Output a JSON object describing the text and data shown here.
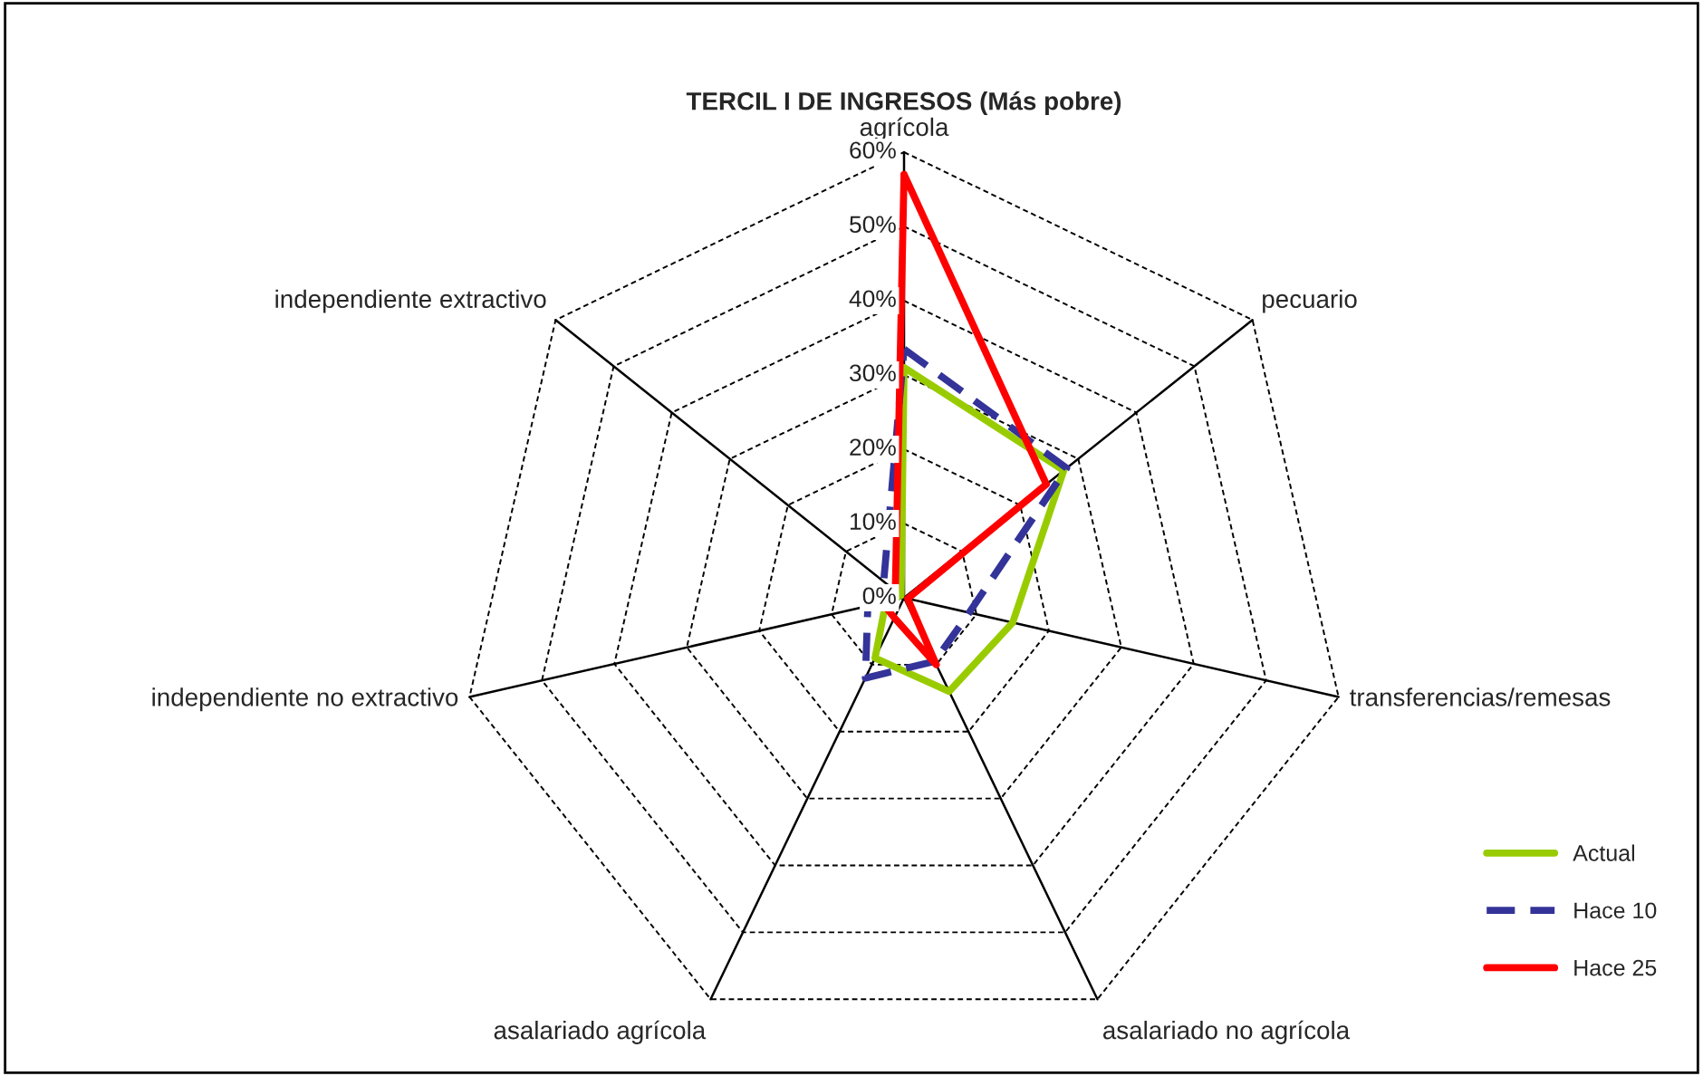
{
  "chart_data": {
    "type": "radar",
    "title": "TERCIL I DE INGRESOS (Más pobre)",
    "categories": [
      "agrícola",
      "pecuario",
      "transferencias/remesas",
      "asalariado no agrícola",
      "asalariado agrícola",
      "independiente no extractivo",
      "independiente extractivo"
    ],
    "series": [
      {
        "name": "Actual",
        "color": "#99cc00",
        "values": [
          31,
          27.5,
          15,
          14,
          9,
          2.5,
          0.5
        ]
      },
      {
        "name": "Hace 10",
        "color": "#333399",
        "values": [
          33.5,
          28,
          9,
          9.5,
          12,
          5,
          3.5
        ],
        "line_style": "dashed"
      },
      {
        "name": "Hace 25",
        "color": "#ff0000",
        "values": [
          57,
          24.5,
          0.5,
          10,
          3,
          3,
          1.5
        ]
      }
    ],
    "ylim": [
      0,
      60
    ],
    "yticks": [
      {
        "value": 0,
        "label": "0%"
      },
      {
        "value": 10,
        "label": "10%"
      },
      {
        "value": 20,
        "label": "20%"
      },
      {
        "value": 30,
        "label": "30%"
      },
      {
        "value": 40,
        "label": "40%"
      },
      {
        "value": 50,
        "label": "50%"
      },
      {
        "value": 60,
        "label": "60%"
      }
    ],
    "legend": "bottom right",
    "marker": "none",
    "line_style": "solid",
    "grid": true
  }
}
